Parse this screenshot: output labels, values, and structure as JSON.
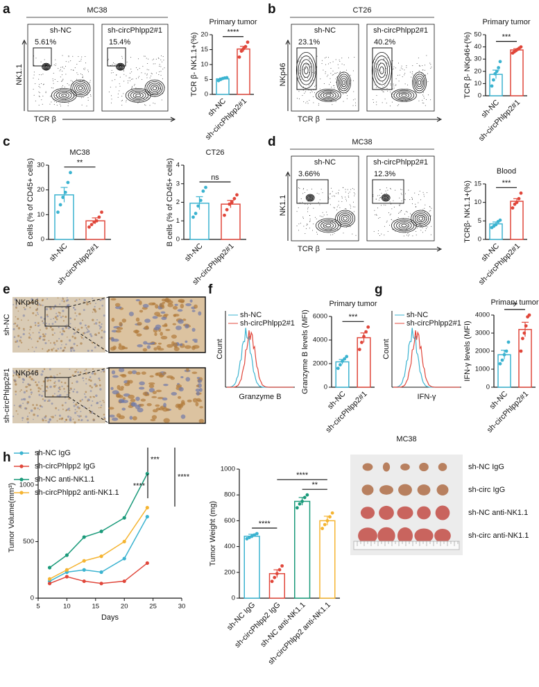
{
  "letters": [
    "a",
    "b",
    "c",
    "d",
    "e",
    "f",
    "g",
    "h"
  ],
  "flow": [
    {
      "title": "MC38",
      "ylabel": "NK1.1",
      "xlabel": "TCR β",
      "samples": [
        {
          "name": "sh-NC",
          "gate": "5.61%"
        },
        {
          "name": "sh-circPhlpp2#1",
          "gate": "15.4%"
        }
      ]
    },
    {
      "title": "CT26",
      "ylabel": "NKp46",
      "xlabel": "TCR β",
      "samples": [
        {
          "name": "sh-NC",
          "gate": "23.1%"
        },
        {
          "name": "sh-circPhlpp2#1",
          "gate": "40.2%"
        }
      ]
    },
    {
      "title": "MC38",
      "ylabel": "NK1.1",
      "xlabel": "TCR β",
      "samples": [
        {
          "name": "sh-NC",
          "gate": "3.66%"
        },
        {
          "name": "sh-circPhlpp2#1",
          "gate": "12.3%"
        }
      ]
    }
  ],
  "ihc": {
    "rows": [
      {
        "name": "sh-NC",
        "stain": "NKp46"
      },
      {
        "name": "sh-circPhlpp2#1",
        "stain": "NKp46"
      }
    ]
  },
  "histograms": [
    {
      "legend": [
        "sh-NC",
        "sh-circPhlpp2#1"
      ],
      "colors": [
        "#3bb3d0",
        "#e0463a"
      ],
      "ylabel": "Count",
      "xlabel": "Granzyme B"
    },
    {
      "legend": [
        "sh-NC",
        "sh-circPhlpp2#1"
      ],
      "colors": [
        "#3bb3d0",
        "#e0463a"
      ],
      "ylabel": "Count",
      "xlabel": "IFN-γ"
    }
  ],
  "photo": {
    "title": "MC38",
    "rows": [
      "sh-NC IgG",
      "sh-circ IgG",
      "sh-NC anti-NK1.1",
      "sh-circ anti-NK1.1"
    ]
  },
  "chart_data": [
    {
      "type": "bar",
      "title": "Primary tumor",
      "ylabel": "TCR β- NK1.1+(%)",
      "categories": [
        "sh-NC",
        "sh-circPhlpp2#1"
      ],
      "colors": [
        "#3bb3d0",
        "#e0463a"
      ],
      "values": [
        5.2,
        15.2
      ],
      "errors": [
        0.3,
        0.9
      ],
      "points": [
        [
          4.6,
          5.0,
          5.3,
          5.5,
          5.6
        ],
        [
          12.5,
          14.5,
          15.3,
          16.0,
          17.5
        ]
      ],
      "ylim": [
        0,
        20
      ],
      "yticks": [
        0,
        5,
        10,
        15,
        20
      ],
      "comparisons": [
        {
          "label": "****",
          "between": [
            0,
            1
          ]
        }
      ]
    },
    {
      "type": "bar",
      "title": "Primary tumor",
      "ylabel": "TCR β- NKp46+(%)",
      "categories": [
        "sh-NC",
        "sh-circPhlpp2#1"
      ],
      "colors": [
        "#3bb3d0",
        "#e0463a"
      ],
      "values": [
        17.5,
        37.5
      ],
      "errors": [
        3.5,
        1.0
      ],
      "points": [
        [
          8,
          13,
          18,
          20,
          23,
          28
        ],
        [
          35,
          36,
          37,
          38,
          39,
          40
        ]
      ],
      "ylim": [
        0,
        50
      ],
      "yticks": [
        0,
        10,
        20,
        30,
        40,
        50
      ],
      "comparisons": [
        {
          "label": "***",
          "between": [
            0,
            1
          ]
        }
      ]
    },
    {
      "type": "bar",
      "title": "MC38",
      "ylabel": "B cells (% of CD45+ cells)",
      "categories": [
        "sh-NC",
        "sh-circPhlpp2#1"
      ],
      "colors": [
        "#3bb3d0",
        "#e0463a"
      ],
      "values": [
        18,
        7.5
      ],
      "errors": [
        3,
        1.2
      ],
      "points": [
        [
          11,
          14,
          17,
          19,
          23,
          27
        ],
        [
          5,
          6,
          7,
          7.5,
          9,
          11
        ]
      ],
      "ylim": [
        0,
        30
      ],
      "yticks": [
        0,
        10,
        20,
        30
      ],
      "comparisons": [
        {
          "label": "**",
          "between": [
            0,
            1
          ]
        }
      ]
    },
    {
      "type": "bar",
      "title": "CT26",
      "ylabel": "B cells (% of CD45+ cells)",
      "categories": [
        "sh-NC",
        "sh-circPhlpp2#1"
      ],
      "colors": [
        "#3bb3d0",
        "#e0463a"
      ],
      "values": [
        1.95,
        1.9
      ],
      "errors": [
        0.35,
        0.2
      ],
      "points": [
        [
          1.2,
          1.4,
          1.8,
          2.1,
          2.6,
          2.8
        ],
        [
          1.3,
          1.6,
          1.9,
          2.0,
          2.2,
          2.4
        ]
      ],
      "ylim": [
        0,
        4
      ],
      "yticks": [
        0,
        1,
        2,
        3,
        4
      ],
      "comparisons": [
        {
          "label": "ns",
          "between": [
            0,
            1
          ]
        }
      ]
    },
    {
      "type": "bar",
      "title": "Blood",
      "ylabel": "TCRβ- NK1.1+(%)",
      "categories": [
        "sh-NC",
        "sh-circPhlpp2#1"
      ],
      "colors": [
        "#3bb3d0",
        "#e0463a"
      ],
      "values": [
        4.2,
        10.3
      ],
      "errors": [
        0.5,
        0.7
      ],
      "points": [
        [
          3.2,
          3.6,
          4.0,
          4.8,
          5.2
        ],
        [
          8.5,
          9.5,
          10,
          11,
          12.5
        ]
      ],
      "ylim": [
        0,
        15
      ],
      "yticks": [
        0,
        5,
        10,
        15
      ],
      "comparisons": [
        {
          "label": "***",
          "between": [
            0,
            1
          ]
        }
      ]
    },
    {
      "type": "bar",
      "title": "Primary tumor",
      "ylabel": "Granzyme B levels (MFI)",
      "categories": [
        "sh-NC",
        "sh-circPhlpp2#1"
      ],
      "colors": [
        "#3bb3d0",
        "#e0463a"
      ],
      "values": [
        2150,
        4200
      ],
      "errors": [
        200,
        400
      ],
      "points": [
        [
          1600,
          1900,
          2200,
          2400,
          2600
        ],
        [
          3200,
          3800,
          4300,
          4700,
          5100
        ]
      ],
      "ylim": [
        0,
        6000
      ],
      "yticks": [
        0,
        2000,
        4000,
        6000
      ],
      "comparisons": [
        {
          "label": "***",
          "between": [
            0,
            1
          ]
        }
      ]
    },
    {
      "type": "bar",
      "title": "Primary tumor",
      "ylabel": "IFN-γ levels (MFI)",
      "categories": [
        "sh-NC",
        "sh-circPhlpp2#1"
      ],
      "colors": [
        "#3bb3d0",
        "#e0463a"
      ],
      "values": [
        1800,
        3200
      ],
      "errors": [
        250,
        400
      ],
      "points": [
        [
          1300,
          1500,
          1800,
          2000,
          2500
        ],
        [
          2000,
          2700,
          3000,
          3400,
          3900,
          4000
        ]
      ],
      "ylim": [
        0,
        4000
      ],
      "yticks": [
        0,
        1000,
        2000,
        3000,
        4000
      ],
      "comparisons": [
        {
          "label": "**",
          "between": [
            0,
            1
          ]
        }
      ]
    },
    {
      "type": "line",
      "xlabel": "Days",
      "ylabel": "Tumor Volume(mm³)",
      "x": [
        7,
        10,
        13,
        16,
        20,
        24
      ],
      "xlim": [
        5,
        30
      ],
      "xticks": [
        5,
        10,
        15,
        20,
        25,
        30
      ],
      "ylim": [
        0,
        1300
      ],
      "yticks": [
        0,
        500,
        1000
      ],
      "series": [
        {
          "name": "sh-NC IgG",
          "color": "#3bb3d0",
          "values": [
            150,
            230,
            250,
            230,
            350,
            720
          ]
        },
        {
          "name": "sh-circPhlpp2 IgG",
          "color": "#e0463a",
          "values": [
            130,
            190,
            150,
            130,
            150,
            310
          ]
        },
        {
          "name": "sh-NC anti-NK1.1",
          "color": "#1a9a7a",
          "values": [
            270,
            380,
            540,
            590,
            710,
            1100
          ]
        },
        {
          "name": "sh-circPhlpp2 anti-NK1.1",
          "color": "#f5b431",
          "values": [
            170,
            250,
            330,
            370,
            500,
            800
          ]
        }
      ],
      "comparisons": [
        {
          "label": "***",
          "between": [
            0,
            1
          ]
        },
        {
          "label": "****",
          "between": [
            2,
            3
          ]
        },
        {
          "label": "****",
          "between": [
            0,
            3
          ]
        }
      ]
    },
    {
      "type": "bar",
      "ylabel": "Tumor Weight (mg)",
      "categories": [
        "sh-NC IgG",
        "sh-circPhlpp2 IgG",
        "sh-NC anti-NK1.1",
        "sh-circPhlpp2 anti-NK1.1"
      ],
      "colors": [
        "#3bb3d0",
        "#e0463a",
        "#1a9a7a",
        "#f5b431"
      ],
      "values": [
        480,
        190,
        750,
        600
      ],
      "errors": [
        15,
        30,
        30,
        35
      ],
      "points": [
        [
          460,
          470,
          480,
          490,
          500
        ],
        [
          130,
          160,
          190,
          220,
          250
        ],
        [
          700,
          730,
          750,
          780,
          800
        ],
        [
          540,
          570,
          600,
          630,
          660
        ]
      ],
      "ylim": [
        0,
        1000
      ],
      "yticks": [
        0,
        200,
        400,
        600,
        800,
        1000
      ],
      "comparisons": [
        {
          "label": "****",
          "between": [
            0,
            1
          ]
        },
        {
          "label": "**",
          "between": [
            2,
            3
          ]
        },
        {
          "label": "****",
          "between": [
            1,
            3
          ]
        }
      ]
    }
  ]
}
